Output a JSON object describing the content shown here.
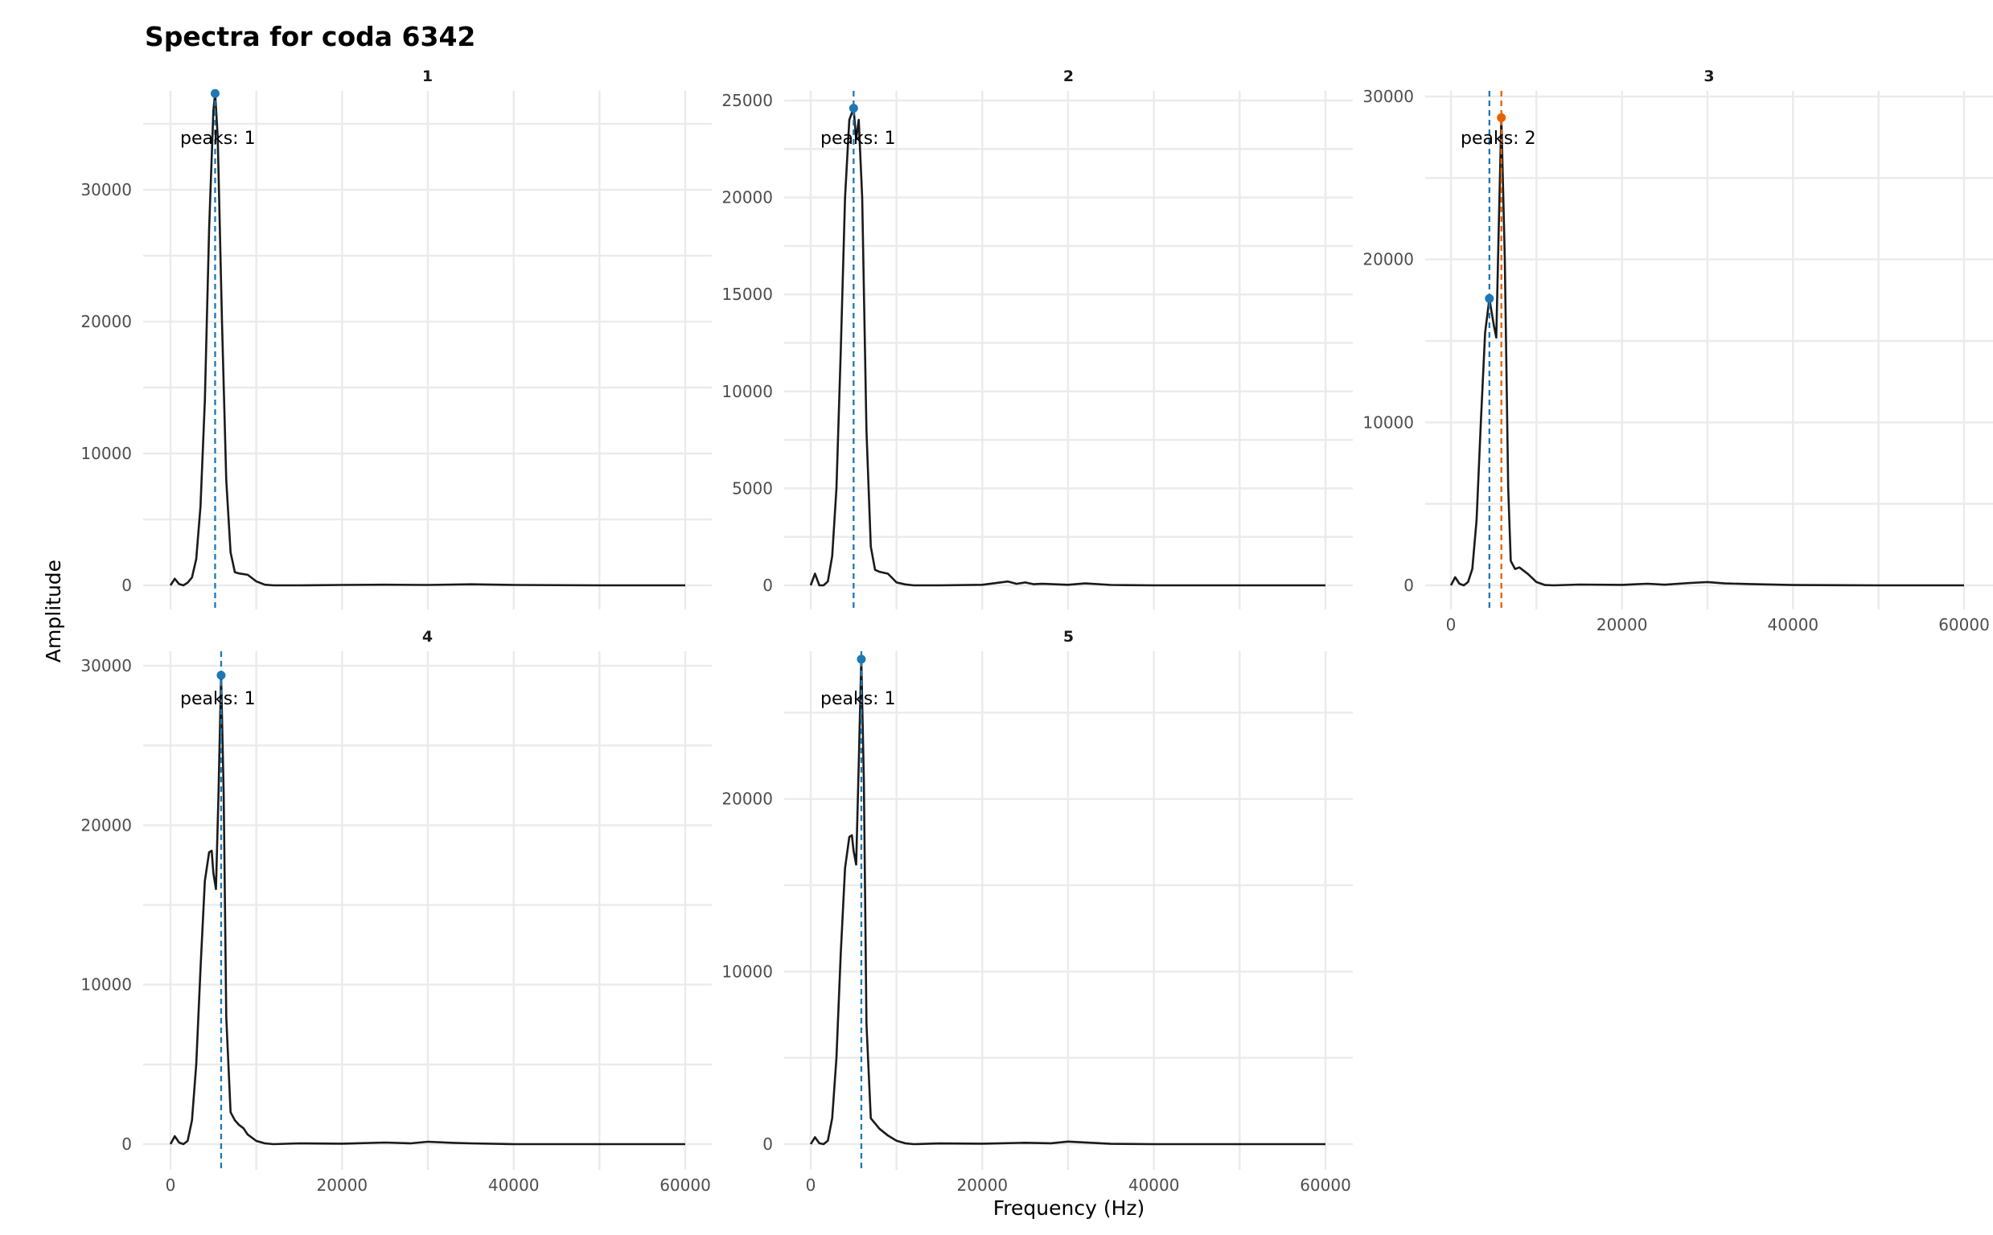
{
  "chart_data": {
    "type": "line",
    "title": "Spectra for coda 6342",
    "xlabel": "Frequency (Hz)",
    "ylabel": "Amplitude",
    "grid": true,
    "legend": "none",
    "peak_colors": [
      "#1f78b4",
      "#e66101"
    ],
    "panels": [
      {
        "strip": "1",
        "xlim": [
          0,
          60000
        ],
        "ylim": [
          0,
          37500
        ],
        "x_ticks": [
          0,
          20000,
          40000,
          60000
        ],
        "y_ticks": [
          0,
          10000,
          20000,
          30000
        ],
        "annotation": "peaks: 1",
        "peaks": [
          {
            "freq": 5200,
            "amp": 37300
          }
        ],
        "x": [
          0,
          500,
          1000,
          1500,
          2000,
          2500,
          3000,
          3500,
          4000,
          4500,
          5000,
          5200,
          5500,
          6000,
          6500,
          7000,
          7500,
          8000,
          9000,
          10000,
          11000,
          12000,
          15000,
          20000,
          25000,
          30000,
          35000,
          40000,
          50000,
          60000
        ],
        "y": [
          0,
          500,
          100,
          0,
          200,
          600,
          2000,
          6000,
          14000,
          27000,
          36000,
          37300,
          34000,
          20000,
          8000,
          2500,
          1000,
          900,
          800,
          300,
          50,
          0,
          0,
          30,
          50,
          30,
          80,
          30,
          0,
          0
        ]
      },
      {
        "strip": "2",
        "xlim": [
          0,
          60000
        ],
        "ylim": [
          0,
          25000
        ],
        "x_ticks": [
          0,
          20000,
          40000,
          60000
        ],
        "y_ticks": [
          0,
          5000,
          10000,
          15000,
          20000,
          25000
        ],
        "annotation": "peaks: 1",
        "peaks": [
          {
            "freq": 5000,
            "amp": 24600
          }
        ],
        "x": [
          0,
          500,
          1000,
          1500,
          2000,
          2500,
          3000,
          3500,
          4000,
          4500,
          5000,
          5300,
          5600,
          6000,
          6500,
          7000,
          7500,
          8000,
          9000,
          10000,
          11000,
          12000,
          15000,
          20000,
          23000,
          24000,
          25000,
          26000,
          27000,
          30000,
          32000,
          35000,
          40000,
          50000,
          60000
        ],
        "y": [
          0,
          600,
          0,
          0,
          200,
          1500,
          5000,
          12000,
          20000,
          24000,
          24600,
          23000,
          24000,
          20000,
          8000,
          2000,
          800,
          700,
          600,
          150,
          50,
          0,
          0,
          30,
          200,
          80,
          150,
          60,
          80,
          30,
          100,
          20,
          0,
          0,
          0
        ]
      },
      {
        "strip": "3",
        "xlim": [
          0,
          60000
        ],
        "ylim": [
          0,
          30000
        ],
        "x_ticks": [
          0,
          20000,
          40000,
          60000
        ],
        "y_ticks": [
          0,
          10000,
          20000,
          30000
        ],
        "annotation": "peaks: 2",
        "peaks": [
          {
            "freq": 4500,
            "amp": 17600
          },
          {
            "freq": 5900,
            "amp": 28700
          }
        ],
        "x": [
          0,
          500,
          1000,
          1500,
          2000,
          2500,
          3000,
          3500,
          4000,
          4500,
          5000,
          5300,
          5600,
          5900,
          6300,
          6700,
          7000,
          7500,
          8000,
          9000,
          10000,
          11000,
          12000,
          15000,
          20000,
          23000,
          25000,
          28000,
          30000,
          32000,
          35000,
          40000,
          50000,
          60000
        ],
        "y": [
          0,
          500,
          100,
          0,
          200,
          1000,
          4000,
          10000,
          15500,
          17600,
          16000,
          15200,
          22000,
          28700,
          20000,
          6000,
          1500,
          1000,
          1100,
          700,
          200,
          20,
          0,
          50,
          30,
          100,
          40,
          150,
          200,
          120,
          80,
          20,
          0,
          0
        ]
      },
      {
        "strip": "4",
        "xlim": [
          0,
          60000
        ],
        "ylim": [
          0,
          30000
        ],
        "x_ticks": [
          0,
          20000,
          40000,
          60000
        ],
        "y_ticks": [
          0,
          10000,
          20000,
          30000
        ],
        "annotation": "peaks: 1",
        "peaks": [
          {
            "freq": 5900,
            "amp": 29400
          }
        ],
        "x": [
          0,
          500,
          1000,
          1500,
          2000,
          2500,
          3000,
          3500,
          4000,
          4500,
          4800,
          5000,
          5300,
          5600,
          5900,
          6200,
          6500,
          7000,
          7500,
          8000,
          8500,
          9000,
          10000,
          11000,
          12000,
          15000,
          20000,
          25000,
          28000,
          30000,
          33000,
          35000,
          40000,
          50000,
          60000
        ],
        "y": [
          0,
          500,
          100,
          0,
          200,
          1500,
          5000,
          11000,
          16500,
          18300,
          18400,
          17000,
          16000,
          22000,
          29400,
          22000,
          8000,
          2000,
          1500,
          1200,
          1000,
          600,
          200,
          50,
          0,
          50,
          30,
          100,
          50,
          150,
          80,
          50,
          0,
          0,
          0
        ]
      },
      {
        "strip": "5",
        "xlim": [
          0,
          60000
        ],
        "ylim": [
          0,
          28000
        ],
        "x_ticks": [
          0,
          20000,
          40000,
          60000
        ],
        "y_ticks": [
          0,
          10000,
          20000
        ],
        "annotation": "peaks: 1",
        "peaks": [
          {
            "freq": 5900,
            "amp": 28100
          }
        ],
        "x": [
          0,
          500,
          1000,
          1500,
          2000,
          2500,
          3000,
          3500,
          4000,
          4500,
          4800,
          5000,
          5300,
          5600,
          5900,
          6200,
          6500,
          7000,
          7500,
          8000,
          9000,
          10000,
          11000,
          12000,
          15000,
          20000,
          25000,
          28000,
          30000,
          32000,
          35000,
          40000,
          50000,
          60000
        ],
        "y": [
          0,
          400,
          50,
          0,
          200,
          1500,
          5000,
          11000,
          16000,
          17800,
          17900,
          17000,
          16200,
          22000,
          28100,
          21000,
          7000,
          1500,
          1200,
          900,
          500,
          200,
          50,
          0,
          40,
          30,
          80,
          50,
          150,
          100,
          20,
          0,
          0,
          0
        ]
      }
    ]
  }
}
